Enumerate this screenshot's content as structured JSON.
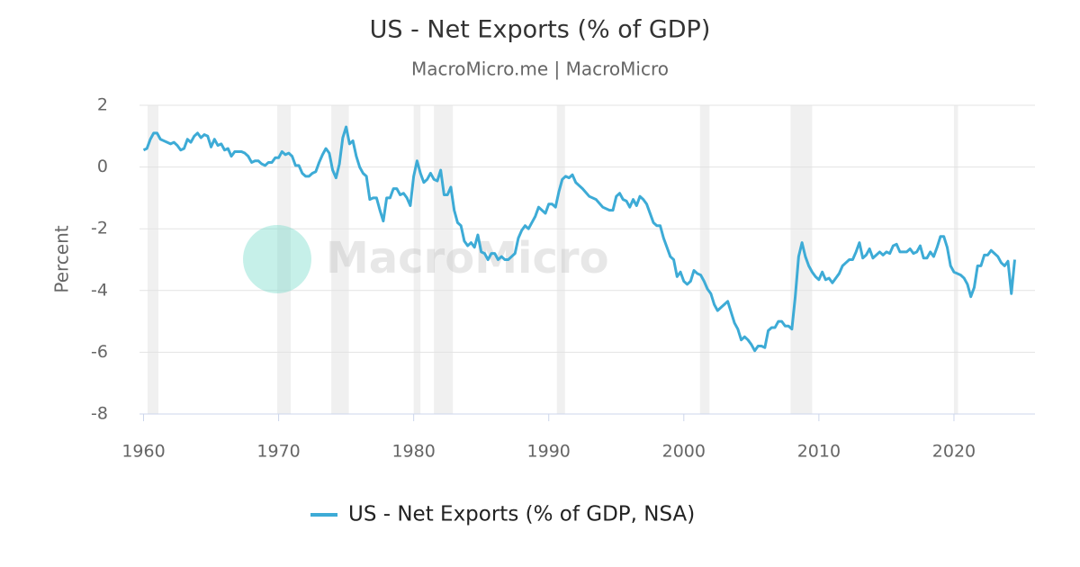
{
  "chart_data": {
    "type": "line",
    "title": "US - Net Exports (% of GDP)",
    "subtitle": "MacroMicro.me | MacroMicro",
    "watermark": "MacroMicro",
    "y_label": "Percent",
    "xlim": [
      1959.7,
      2026.0
    ],
    "ylim": [
      -8,
      2
    ],
    "xticks": [
      1960,
      1970,
      1980,
      1990,
      2000,
      2010,
      2020
    ],
    "yticks": [
      -8,
      -6,
      -4,
      -2,
      0,
      2
    ],
    "grid": true,
    "legend": "bottom",
    "shaded_periods": [
      [
        1960.3,
        1961.1
      ],
      [
        1969.9,
        1970.9
      ],
      [
        1973.9,
        1975.2
      ],
      [
        1980.0,
        1980.5
      ],
      [
        1981.5,
        1982.9
      ],
      [
        1990.6,
        1991.2
      ],
      [
        2001.2,
        2001.9
      ],
      [
        2007.9,
        2009.5
      ],
      [
        2020.0,
        2020.3
      ]
    ],
    "shade_color": "#f0f0f0",
    "x": [
      1960.0,
      1960.25,
      1960.5,
      1960.75,
      1961.0,
      1961.25,
      1961.5,
      1961.75,
      1962.0,
      1962.25,
      1962.5,
      1962.75,
      1963.0,
      1963.25,
      1963.5,
      1963.75,
      1964.0,
      1964.25,
      1964.5,
      1964.75,
      1965.0,
      1965.25,
      1965.5,
      1965.75,
      1966.0,
      1966.25,
      1966.5,
      1966.75,
      1967.0,
      1967.25,
      1967.5,
      1967.75,
      1968.0,
      1968.25,
      1968.5,
      1968.75,
      1969.0,
      1969.25,
      1969.5,
      1969.75,
      1970.0,
      1970.25,
      1970.5,
      1970.75,
      1971.0,
      1971.25,
      1971.5,
      1971.75,
      1972.0,
      1972.25,
      1972.5,
      1972.75,
      1973.0,
      1973.25,
      1973.5,
      1973.75,
      1974.0,
      1974.25,
      1974.5,
      1974.75,
      1975.0,
      1975.25,
      1975.5,
      1975.75,
      1976.0,
      1976.25,
      1976.5,
      1976.75,
      1977.0,
      1977.25,
      1977.5,
      1977.75,
      1978.0,
      1978.25,
      1978.5,
      1978.75,
      1979.0,
      1979.25,
      1979.5,
      1979.75,
      1980.0,
      1980.25,
      1980.5,
      1980.75,
      1981.0,
      1981.25,
      1981.5,
      1981.75,
      1982.0,
      1982.25,
      1982.5,
      1982.75,
      1983.0,
      1983.25,
      1983.5,
      1983.75,
      1984.0,
      1984.25,
      1984.5,
      1984.75,
      1985.0,
      1985.25,
      1985.5,
      1985.75,
      1986.0,
      1986.25,
      1986.5,
      1986.75,
      1987.0,
      1987.25,
      1987.5,
      1987.75,
      1988.0,
      1988.25,
      1988.5,
      1988.75,
      1989.0,
      1989.25,
      1989.5,
      1989.75,
      1990.0,
      1990.25,
      1990.5,
      1990.75,
      1991.0,
      1991.25,
      1991.5,
      1991.75,
      1992.0,
      1992.5,
      1993.0,
      1993.5,
      1994.0,
      1994.5,
      1994.75,
      1995.0,
      1995.25,
      1995.5,
      1995.75,
      1996.0,
      1996.25,
      1996.5,
      1996.75,
      1997.0,
      1997.25,
      1997.5,
      1997.75,
      1998.0,
      1998.25,
      1998.5,
      1998.75,
      1999.0,
      1999.25,
      1999.5,
      1999.75,
      2000.0,
      2000.25,
      2000.5,
      2000.75,
      2001.0,
      2001.25,
      2001.5,
      2001.75,
      2002.0,
      2002.25,
      2002.5,
      2002.75,
      2003.0,
      2003.25,
      2003.5,
      2003.75,
      2004.0,
      2004.25,
      2004.5,
      2004.75,
      2005.0,
      2005.25,
      2005.5,
      2005.75,
      2006.0,
      2006.25,
      2006.5,
      2006.75,
      2007.0,
      2007.25,
      2007.5,
      2007.75,
      2008.0,
      2008.25,
      2008.5,
      2008.75,
      2009.0,
      2009.25,
      2009.5,
      2009.75,
      2010.0,
      2010.25,
      2010.5,
      2010.75,
      2011.0,
      2011.25,
      2011.5,
      2011.75,
      2012.0,
      2012.25,
      2012.5,
      2012.75,
      2013.0,
      2013.25,
      2013.5,
      2013.75,
      2014.0,
      2014.25,
      2014.5,
      2014.75,
      2015.0,
      2015.25,
      2015.5,
      2015.75,
      2016.0,
      2016.25,
      2016.5,
      2016.75,
      2017.0,
      2017.25,
      2017.5,
      2017.75,
      2018.0,
      2018.25,
      2018.5,
      2018.75,
      2019.0,
      2019.25,
      2019.5,
      2019.75,
      2020.0,
      2020.25,
      2020.5,
      2020.75,
      2021.0,
      2021.25,
      2021.5,
      2021.75,
      2022.0,
      2022.25,
      2022.5,
      2022.75,
      2023.0,
      2023.25,
      2023.5,
      2023.75,
      2024.0,
      2024.25,
      2024.5
    ],
    "series": [
      {
        "name": "US - Net Exports (% of GDP, NSA)",
        "color": "#3dabd6",
        "values": [
          0.55,
          0.6,
          0.9,
          1.1,
          1.1,
          0.9,
          0.85,
          0.8,
          0.75,
          0.8,
          0.7,
          0.55,
          0.6,
          0.9,
          0.8,
          1.0,
          1.1,
          0.95,
          1.05,
          1.0,
          0.65,
          0.9,
          0.7,
          0.75,
          0.55,
          0.6,
          0.35,
          0.5,
          0.5,
          0.5,
          0.45,
          0.35,
          0.15,
          0.2,
          0.2,
          0.1,
          0.05,
          0.15,
          0.15,
          0.3,
          0.3,
          0.5,
          0.4,
          0.45,
          0.35,
          0.05,
          0.05,
          -0.2,
          -0.3,
          -0.3,
          -0.2,
          -0.15,
          0.15,
          0.4,
          0.6,
          0.45,
          -0.1,
          -0.35,
          0.1,
          0.95,
          1.3,
          0.75,
          0.85,
          0.35,
          0,
          -0.2,
          -0.3,
          -1.05,
          -1.0,
          -1.0,
          -1.4,
          -1.75,
          -1.0,
          -1.0,
          -0.7,
          -0.7,
          -0.9,
          -0.85,
          -1.0,
          -1.25,
          -0.3,
          0.2,
          -0.2,
          -0.5,
          -0.4,
          -0.2,
          -0.4,
          -0.45,
          -0.1,
          -0.9,
          -0.9,
          -0.65,
          -1.4,
          -1.8,
          -1.9,
          -2.4,
          -2.55,
          -2.45,
          -2.6,
          -2.2,
          -2.75,
          -2.8,
          -3.0,
          -2.8,
          -2.8,
          -3.0,
          -2.9,
          -3.0,
          -3.0,
          -2.9,
          -2.8,
          -2.3,
          -2.05,
          -1.9,
          -2.0,
          -1.8,
          -1.6,
          -1.3,
          -1.4,
          -1.5,
          -1.2,
          -1.2,
          -1.3,
          -0.8,
          -0.4,
          -0.3,
          -0.35,
          -0.25,
          -0.5,
          -0.7,
          -0.95,
          -1.05,
          -1.3,
          -1.4,
          -1.4,
          -0.95,
          -0.85,
          -1.05,
          -1.1,
          -1.3,
          -1.05,
          -1.25,
          -0.95,
          -1.05,
          -1.2,
          -1.5,
          -1.8,
          -1.9,
          -1.9,
          -2.3,
          -2.6,
          -2.9,
          -3.0,
          -3.55,
          -3.4,
          -3.7,
          -3.8,
          -3.7,
          -3.35,
          -3.45,
          -3.5,
          -3.7,
          -3.95,
          -4.1,
          -4.45,
          -4.65,
          -4.55,
          -4.45,
          -4.35,
          -4.7,
          -5.05,
          -5.25,
          -5.6,
          -5.5,
          -5.6,
          -5.75,
          -5.95,
          -5.8,
          -5.8,
          -5.85,
          -5.3,
          -5.2,
          -5.2,
          -5.0,
          -5.0,
          -5.15,
          -5.15,
          -5.25,
          -4.2,
          -2.9,
          -2.45,
          -2.9,
          -3.2,
          -3.4,
          -3.55,
          -3.65,
          -3.4,
          -3.65,
          -3.6,
          -3.75,
          -3.6,
          -3.45,
          -3.2,
          -3.1,
          -3.0,
          -3.0,
          -2.75,
          -2.45,
          -2.95,
          -2.85,
          -2.65,
          -2.95,
          -2.85,
          -2.75,
          -2.85,
          -2.75,
          -2.8,
          -2.55,
          -2.5,
          -2.75,
          -2.75,
          -2.75,
          -2.65,
          -2.8,
          -2.75,
          -2.55,
          -2.95,
          -2.95,
          -2.75,
          -2.9,
          -2.6,
          -2.25,
          -2.25,
          -2.6,
          -3.2,
          -3.4,
          -3.45,
          -3.5,
          -3.6,
          -3.8,
          -4.2,
          -3.9,
          -3.2,
          -3.2,
          -2.85,
          -2.85,
          -2.7,
          -2.8,
          -2.9,
          -3.1,
          -3.2,
          -3.05,
          -4.1,
          -3.0
        ]
      }
    ]
  }
}
